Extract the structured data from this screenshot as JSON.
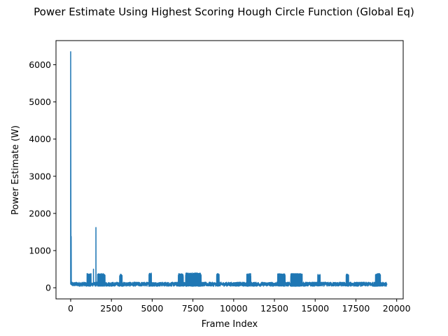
{
  "chart_data": {
    "type": "line",
    "title": "Power Estimate Using Highest Scoring Hough Circle Function (Global Eq)",
    "xlabel": "Frame Index",
    "ylabel": "Power Estimate (W)",
    "xlim": [
      -900,
      20400
    ],
    "ylim": [
      -300,
      6650
    ],
    "xticks": [
      0,
      2500,
      5000,
      7500,
      10000,
      12500,
      15000,
      17500,
      20000
    ],
    "xtick_labels": [
      "0",
      "2500",
      "5000",
      "7500",
      "10000",
      "12500",
      "15000",
      "17500",
      "20000"
    ],
    "yticks": [
      0,
      1000,
      2000,
      3000,
      4000,
      5000,
      6000
    ],
    "ytick_labels": [
      "0",
      "1000",
      "2000",
      "3000",
      "4000",
      "5000",
      "6000"
    ],
    "grid": false,
    "legend": "none",
    "series": [
      {
        "color": "#1f77b4",
        "baseline_range": [
          40,
          150
        ],
        "x_range": [
          0,
          19400
        ],
        "spikes": [
          {
            "x": 0,
            "value": 6350
          },
          {
            "x": 30,
            "value": 1380
          },
          {
            "x": 1550,
            "value": 1620
          },
          {
            "x": 1400,
            "value": 500
          }
        ],
        "bursts": [
          {
            "x_start": 1000,
            "x_end": 1250,
            "max": 380
          },
          {
            "x_start": 1650,
            "x_end": 2100,
            "max": 380
          },
          {
            "x_start": 3000,
            "x_end": 3150,
            "max": 370
          },
          {
            "x_start": 4800,
            "x_end": 4950,
            "max": 400
          },
          {
            "x_start": 6600,
            "x_end": 6900,
            "max": 380
          },
          {
            "x_start": 7050,
            "x_end": 8000,
            "max": 400
          },
          {
            "x_start": 8950,
            "x_end": 9100,
            "max": 380
          },
          {
            "x_start": 10800,
            "x_end": 11050,
            "max": 380
          },
          {
            "x_start": 12700,
            "x_end": 13150,
            "max": 380
          },
          {
            "x_start": 13500,
            "x_end": 14200,
            "max": 380
          },
          {
            "x_start": 15150,
            "x_end": 15300,
            "max": 370
          },
          {
            "x_start": 16900,
            "x_end": 17050,
            "max": 370
          },
          {
            "x_start": 18700,
            "x_end": 19000,
            "max": 380
          }
        ]
      }
    ]
  }
}
